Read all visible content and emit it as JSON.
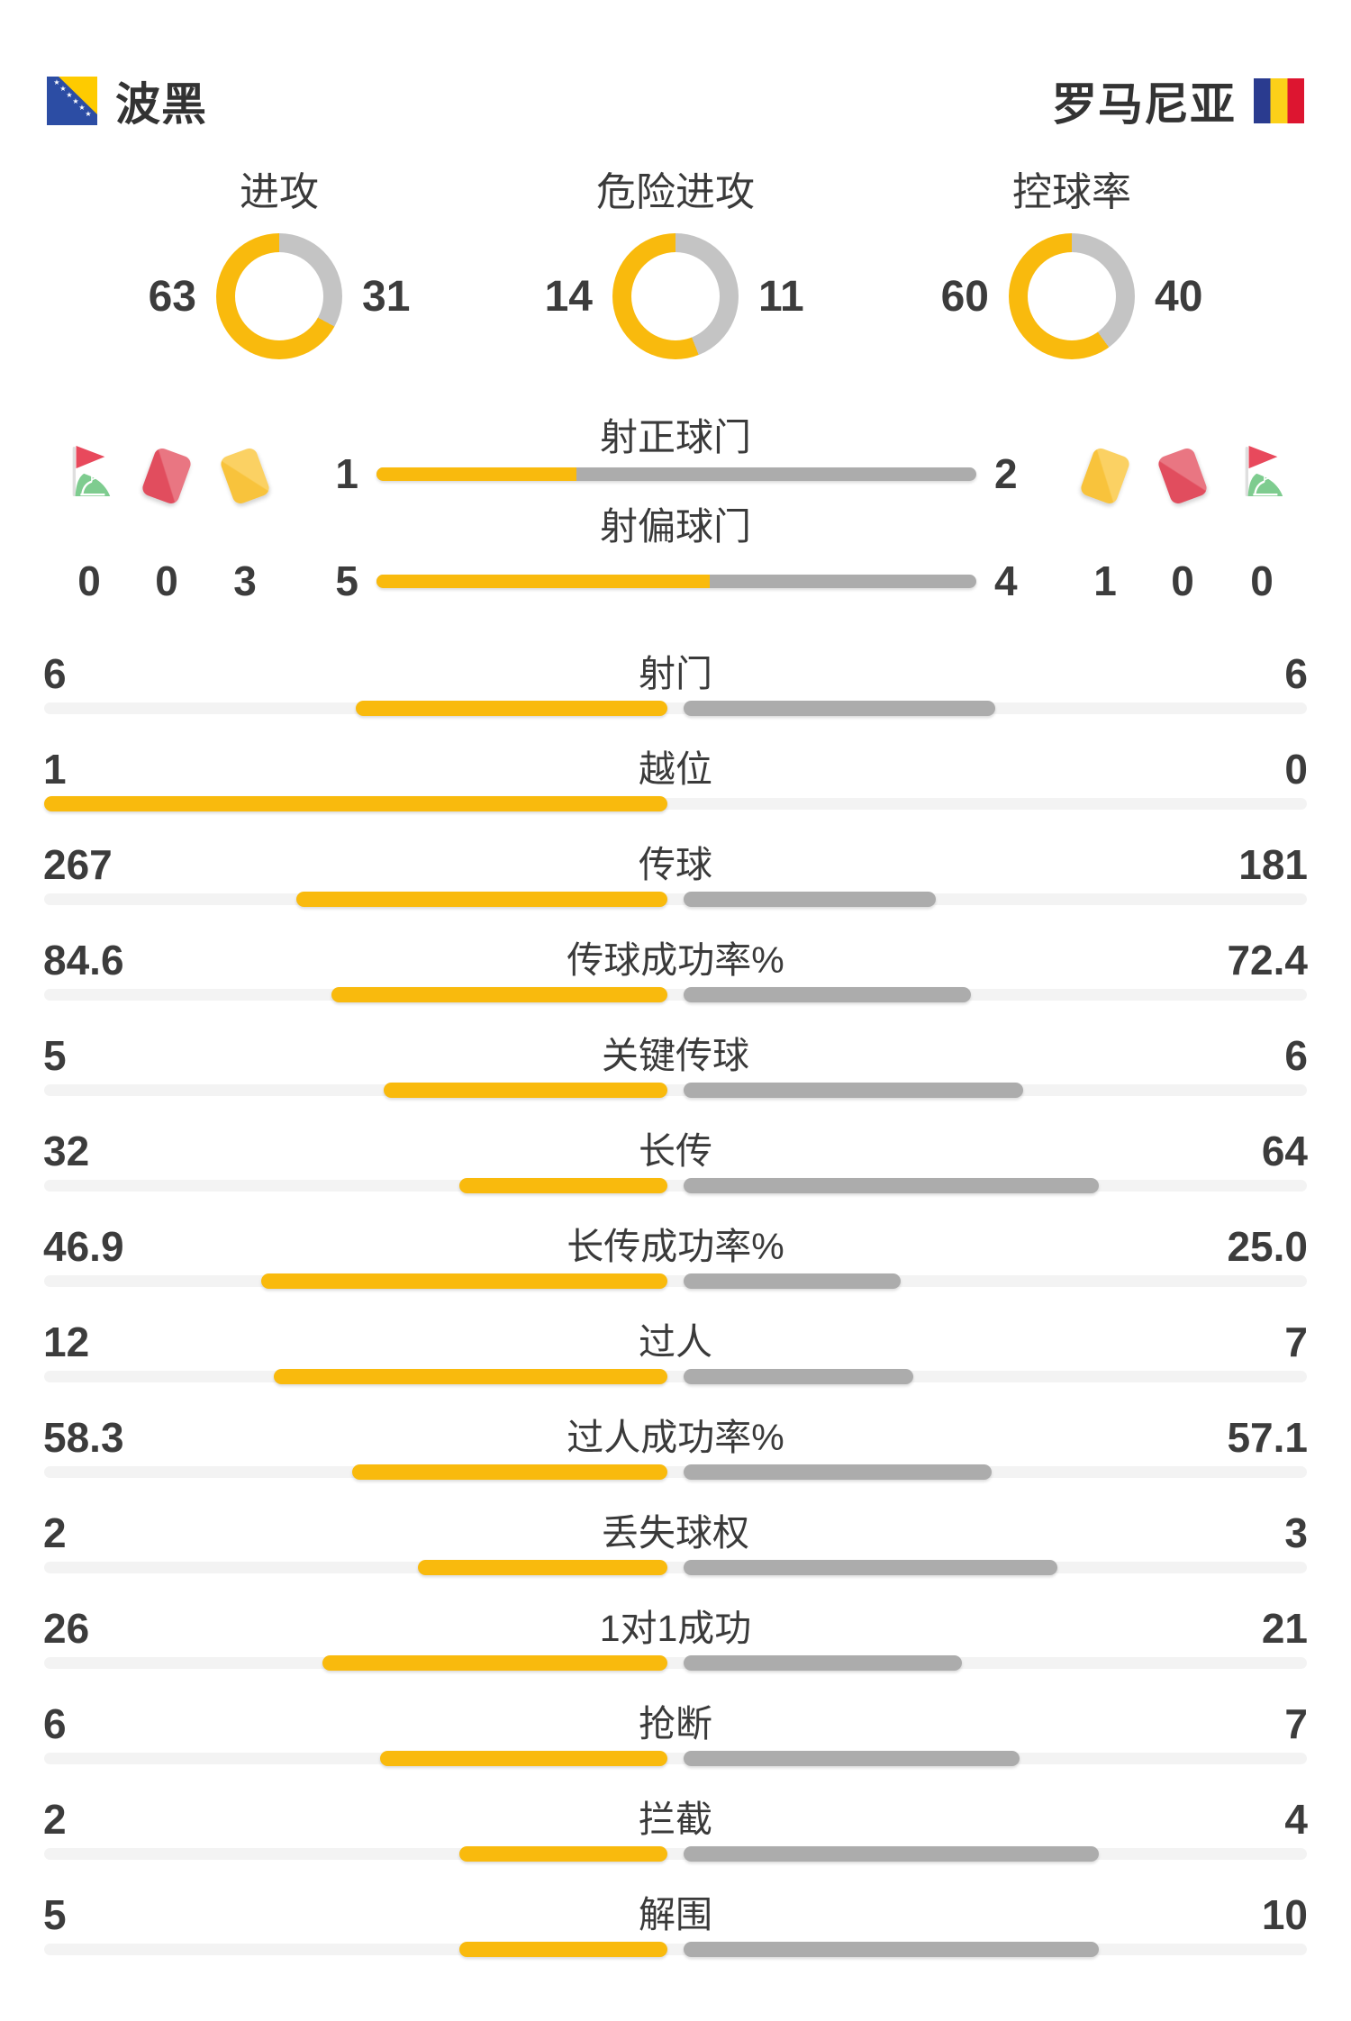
{
  "header": {
    "home_team": "波黑",
    "away_team": "罗马尼亚"
  },
  "colors": {
    "yellow": "#F9BA0D",
    "bar_gray": "#ACACAC",
    "donut_gray": "#C4C4C4",
    "track_gray": "#F3F3F3",
    "text": "#3C3C3C",
    "card_yellow": "#F8C33C",
    "card_red": "#E14D5E",
    "flag_green": "#7ECC8F",
    "flag_red": "#E8495C",
    "bosnia_blue": "#2C4DA4",
    "bosnia_yellow": "#FECB00",
    "romania_blue": "#2A3B8F",
    "romania_yellow": "#FCD019",
    "romania_red": "#DD1530"
  },
  "chart_data": {
    "type": "bar",
    "description": "Football match statistics, home team (波黑, yellow) vs away team (罗马尼亚, gray)",
    "legend_position": "none",
    "donuts": [
      {
        "label": "进攻",
        "home": "63",
        "away": "31"
      },
      {
        "label": "危险进攻",
        "home": "14",
        "away": "11"
      },
      {
        "label": "控球率",
        "home": "60",
        "away": "40"
      }
    ],
    "discipline": {
      "home": {
        "corners": "0",
        "red_cards": "0",
        "yellow_cards": "3"
      },
      "away": {
        "yellow_cards": "1",
        "red_cards": "0",
        "corners": "0"
      }
    },
    "shot_bars": [
      {
        "label": "射正球门",
        "home": "1",
        "away": "2"
      },
      {
        "label": "射偏球门",
        "home": "5",
        "away": "4"
      }
    ],
    "stats": [
      {
        "label": "射门",
        "home": "6",
        "away": "6"
      },
      {
        "label": "越位",
        "home": "1",
        "away": "0"
      },
      {
        "label": "传球",
        "home": "267",
        "away": "181"
      },
      {
        "label": "传球成功率%",
        "home": "84.6",
        "away": "72.4"
      },
      {
        "label": "关键传球",
        "home": "5",
        "away": "6"
      },
      {
        "label": "长传",
        "home": "32",
        "away": "64"
      },
      {
        "label": "长传成功率%",
        "home": "46.9",
        "away": "25.0"
      },
      {
        "label": "过人",
        "home": "12",
        "away": "7"
      },
      {
        "label": "过人成功率%",
        "home": "58.3",
        "away": "57.1"
      },
      {
        "label": "丢失球权",
        "home": "2",
        "away": "3"
      },
      {
        "label": "1对1成功",
        "home": "26",
        "away": "21"
      },
      {
        "label": "抢断",
        "home": "6",
        "away": "7"
      },
      {
        "label": "拦截",
        "home": "2",
        "away": "4"
      },
      {
        "label": "解围",
        "home": "5",
        "away": "10"
      }
    ]
  }
}
